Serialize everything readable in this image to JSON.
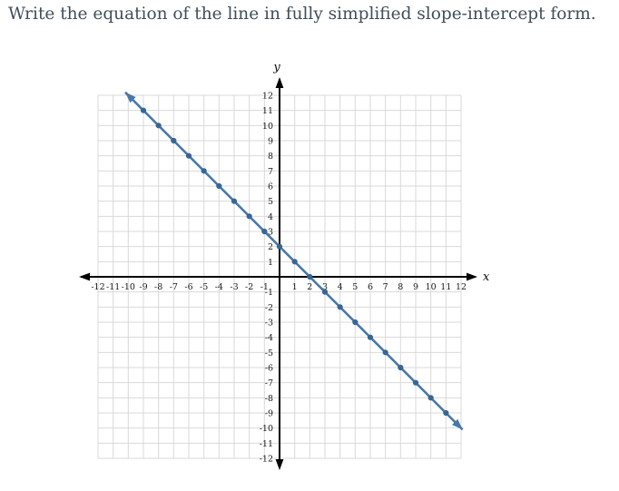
{
  "page": {
    "title": "Write the equation of the line in fully simplified slope-intercept form."
  },
  "colors": {
    "title_text": "#3f4e5a",
    "grid_line": "#d9d9d9",
    "axis": "#000000",
    "line": "#4878a8",
    "marker": "#376694"
  },
  "chart_data": {
    "type": "line",
    "title": "",
    "xlabel": "x",
    "ylabel": "y",
    "xlim": [
      -12,
      12
    ],
    "ylim": [
      -12,
      12
    ],
    "grid": true,
    "tick_step": 1,
    "x_ticks": [
      -12,
      -11,
      -10,
      -9,
      -8,
      -7,
      -6,
      -5,
      -4,
      -3,
      -2,
      -1,
      1,
      2,
      3,
      4,
      5,
      6,
      7,
      8,
      9,
      10,
      11,
      12
    ],
    "y_ticks": [
      -12,
      -11,
      -10,
      -9,
      -8,
      -7,
      -6,
      -5,
      -4,
      -3,
      -2,
      -1,
      1,
      2,
      3,
      4,
      5,
      6,
      7,
      8,
      9,
      10,
      11,
      12
    ],
    "grid_color": "#d9d9d9",
    "axis_color": "#000000",
    "series": [
      {
        "name": "plotted-line",
        "slope": -1,
        "y_intercept": 2,
        "x_intercept": 2,
        "draw_from_x": -10.2,
        "draw_to_x": 12.1,
        "arrow_both_ends": true,
        "color": "#4878a8",
        "marker_color": "#376694",
        "marker_points": [
          [
            -9,
            11
          ],
          [
            -8,
            10
          ],
          [
            -7,
            9
          ],
          [
            -6,
            8
          ],
          [
            -5,
            7
          ],
          [
            -4,
            6
          ],
          [
            -3,
            5
          ],
          [
            -2,
            4
          ],
          [
            -1,
            3
          ],
          [
            0,
            2
          ],
          [
            1,
            1
          ],
          [
            2,
            0
          ],
          [
            3,
            -1
          ],
          [
            4,
            -2
          ],
          [
            5,
            -3
          ],
          [
            6,
            -4
          ],
          [
            7,
            -5
          ],
          [
            8,
            -6
          ],
          [
            9,
            -7
          ],
          [
            10,
            -8
          ],
          [
            11,
            -9
          ]
        ]
      }
    ]
  }
}
